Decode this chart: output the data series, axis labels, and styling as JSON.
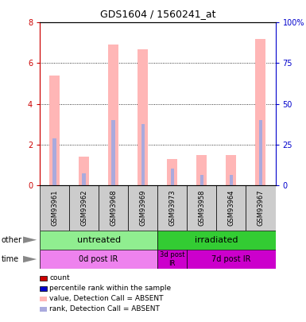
{
  "title": "GDS1604 / 1560241_at",
  "samples": [
    "GSM93961",
    "GSM93962",
    "GSM93968",
    "GSM93969",
    "GSM93973",
    "GSM93958",
    "GSM93964",
    "GSM93967"
  ],
  "bar_heights": [
    5.4,
    1.4,
    6.9,
    6.7,
    1.3,
    1.5,
    1.5,
    7.2
  ],
  "blue_heights": [
    2.3,
    0.6,
    3.2,
    3.0,
    0.8,
    0.5,
    0.5,
    3.2
  ],
  "ylim": [
    0,
    8
  ],
  "y2lim": [
    0,
    100
  ],
  "yticks": [
    0,
    2,
    4,
    6,
    8
  ],
  "y2ticks": [
    0,
    25,
    50,
    75,
    100
  ],
  "bar_color_pink": "#FFB6B6",
  "bar_color_blue": "#AAAADD",
  "legend_count_color": "#CC0000",
  "legend_percentile_color": "#0000CC",
  "legend_absent_pink": "#FFB6B6",
  "legend_absent_blue": "#AAAADD",
  "group_other": [
    {
      "label": "untreated",
      "start": 0,
      "end": 4,
      "color": "#90EE90"
    },
    {
      "label": "irradiated",
      "start": 4,
      "end": 8,
      "color": "#33CC33"
    }
  ],
  "group_time": [
    {
      "label": "0d post IR",
      "start": 0,
      "end": 4,
      "color": "#EE82EE"
    },
    {
      "label": "3d post\nIR",
      "start": 4,
      "end": 5,
      "color": "#CC00CC"
    },
    {
      "label": "7d post IR",
      "start": 5,
      "end": 8,
      "color": "#CC00CC"
    }
  ],
  "background_color": "#ffffff",
  "left_axis_color": "#CC0000",
  "right_axis_color": "#0000CC",
  "sample_bg_color": "#CCCCCC",
  "fig_width": 3.85,
  "fig_height": 4.05,
  "dpi": 100
}
